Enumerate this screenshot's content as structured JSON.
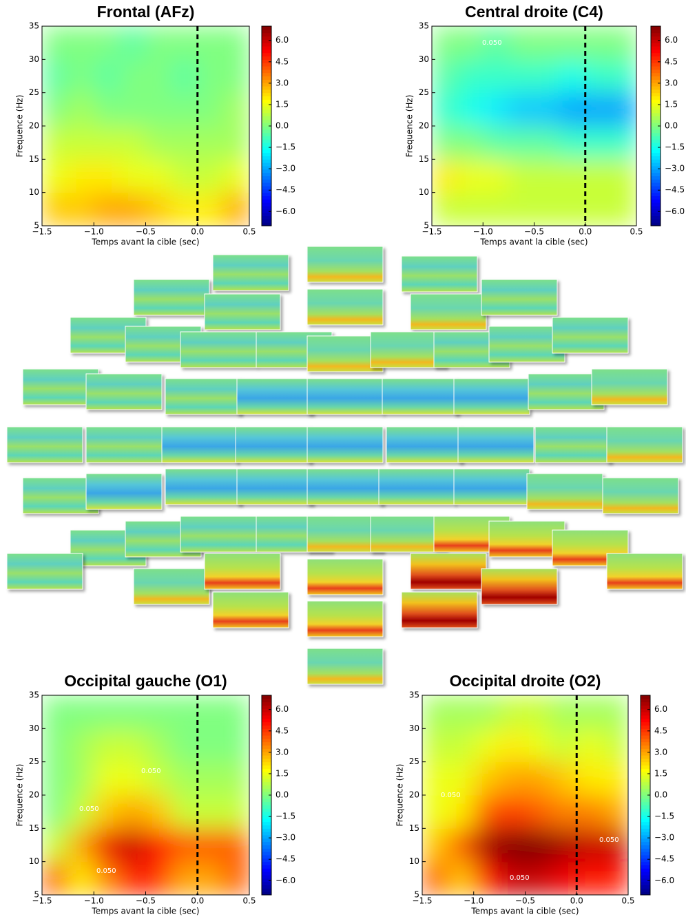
{
  "chart_data": [
    {
      "type": "heatmap",
      "title": "Frontal (AFz)",
      "xlabel": "Temps avant la cible (sec)",
      "ylabel": "Frequence (Hz)",
      "x": [
        -1.5,
        -1.25,
        -1.0,
        -0.75,
        -0.5,
        -0.25,
        0.0,
        0.25,
        0.5
      ],
      "y": [
        5,
        10,
        15,
        20,
        25,
        30,
        35
      ],
      "values": [
        [
          2.5,
          2.5,
          3,
          3,
          2.5,
          2,
          2,
          3
        ],
        [
          1.5,
          2,
          2,
          1.5,
          1.5,
          1,
          1,
          1.5
        ],
        [
          1,
          1,
          1,
          1,
          0.5,
          0.5,
          0.5,
          0.5
        ],
        [
          0,
          0.5,
          0,
          0,
          0,
          0,
          0,
          0.5
        ],
        [
          -0.5,
          0,
          -0.5,
          0,
          0,
          -0.5,
          0,
          0
        ],
        [
          0,
          0,
          0,
          -0.5,
          0,
          0,
          0,
          0
        ]
      ],
      "xlim": [
        -1.5,
        0.5
      ],
      "ylim": [
        5,
        35
      ],
      "xticks": [
        {
          "value": -1.5,
          "label": "−1.5"
        },
        {
          "value": -1.0,
          "label": "−1.0"
        },
        {
          "value": -0.5,
          "label": "−0.5"
        },
        {
          "value": 0,
          "label": "0.0"
        },
        0.5
      ],
      "yticks": [
        5,
        10,
        15,
        20,
        25,
        30,
        35
      ],
      "colormap": "jet",
      "clim": [
        -7,
        7
      ],
      "cticks": [
        {
          "value": 6,
          "label": "6.0"
        },
        4.5,
        {
          "value": 3,
          "label": "3.0"
        },
        1.5,
        {
          "value": 0,
          "label": "0.0"
        },
        {
          "value": -1.5,
          "label": "−1.5"
        },
        {
          "value": -3,
          "label": "−3.0"
        },
        {
          "value": -4.5,
          "label": "−4.5"
        },
        {
          "value": -6,
          "label": "−6.0"
        }
      ],
      "vline": 0
    },
    {
      "type": "heatmap",
      "title": "Central droite (C4)",
      "xlabel": "Temps avant la cible (sec)",
      "ylabel": "Frequence (Hz)",
      "x": [
        -1.5,
        -1.25,
        -1.0,
        -0.75,
        -0.5,
        -0.25,
        0.0,
        0.25,
        0.5
      ],
      "y": [
        5,
        10,
        15,
        20,
        25,
        30,
        35
      ],
      "values": [
        [
          1,
          1,
          1,
          1,
          1,
          1,
          1,
          1
        ],
        [
          2,
          1.5,
          1.5,
          1,
          1,
          1,
          1,
          1
        ],
        [
          0,
          0,
          -0.5,
          -0.5,
          -0.5,
          -1,
          -1,
          -1
        ],
        [
          -1,
          -1.5,
          -2,
          -2.5,
          -2.5,
          -3,
          -3,
          -3
        ],
        [
          -0.5,
          -1,
          -1,
          -1,
          -1,
          -1.5,
          -1,
          -1
        ],
        [
          0,
          0,
          -0.5,
          0,
          0,
          0,
          0,
          0
        ]
      ],
      "xlim": [
        -1.5,
        0.5
      ],
      "ylim": [
        5,
        35
      ],
      "xticks": [
        {
          "value": -1.5,
          "label": "−1.5"
        },
        {
          "value": -1.0,
          "label": "−1.0"
        },
        {
          "value": -0.5,
          "label": "−0.5"
        },
        {
          "value": 0,
          "label": "0.0"
        },
        0.5
      ],
      "yticks": [
        5,
        10,
        15,
        20,
        25,
        30,
        35
      ],
      "colormap": "jet",
      "clim": [
        -7,
        7
      ],
      "cticks": [
        {
          "value": 6,
          "label": "6.0"
        },
        4.5,
        {
          "value": 3,
          "label": "3.0"
        },
        1.5,
        {
          "value": 0,
          "label": "0.0"
        },
        {
          "value": -1.5,
          "label": "−1.5"
        },
        {
          "value": -3,
          "label": "−3.0"
        },
        {
          "value": -4.5,
          "label": "−4.5"
        },
        {
          "value": -6,
          "label": "−6.0"
        }
      ],
      "vline": 0,
      "annotations": [
        "0.050"
      ]
    },
    {
      "type": "heatmap",
      "title": "Occipital gauche (O1)",
      "xlabel": "Temps avant la cible (sec)",
      "ylabel": "Frequence (Hz)",
      "x": [
        -1.5,
        -1.25,
        -1.0,
        -0.75,
        -0.5,
        -0.25,
        0.0,
        0.25,
        0.5
      ],
      "y": [
        5,
        10,
        15,
        20,
        25,
        30,
        35
      ],
      "values": [
        [
          4,
          2,
          3.5,
          5,
          4.5,
          3,
          3,
          4
        ],
        [
          1,
          3,
          5.5,
          6,
          5,
          4,
          4,
          4
        ],
        [
          0,
          1,
          2.5,
          3,
          2.5,
          1,
          1,
          1
        ],
        [
          0,
          0.5,
          1.5,
          1.5,
          1,
          0.5,
          0.5,
          0.5
        ],
        [
          0,
          0.5,
          1,
          1,
          0.5,
          0,
          0,
          0
        ],
        [
          0,
          0,
          0,
          0,
          0,
          0,
          0,
          0
        ]
      ],
      "xlim": [
        -1.5,
        0.5
      ],
      "ylim": [
        5,
        35
      ],
      "xticks": [
        {
          "value": -1.5,
          "label": "−1.5"
        },
        {
          "value": -1.0,
          "label": "−1.0"
        },
        {
          "value": -0.5,
          "label": "−0.5"
        },
        {
          "value": 0,
          "label": "0.0"
        },
        0.5
      ],
      "yticks": [
        5,
        10,
        15,
        20,
        25,
        30,
        35
      ],
      "colormap": "jet",
      "clim": [
        -7,
        7
      ],
      "cticks": [
        {
          "value": 6,
          "label": "6.0"
        },
        4.5,
        {
          "value": 3,
          "label": "3.0"
        },
        1.5,
        {
          "value": 0,
          "label": "0.0"
        },
        {
          "value": -1.5,
          "label": "−1.5"
        },
        {
          "value": -3,
          "label": "−3.0"
        },
        {
          "value": -4.5,
          "label": "−4.5"
        },
        {
          "value": -6,
          "label": "−6.0"
        }
      ],
      "vline": 0,
      "annotations": [
        "0.050"
      ]
    },
    {
      "type": "heatmap",
      "title": "Occipital droite (O2)",
      "xlabel": "Temps avant la cible (sec)",
      "ylabel": "Frequence (Hz)",
      "x": [
        -1.5,
        -1.25,
        -1.0,
        -0.75,
        -0.5,
        -0.25,
        0.0,
        0.25,
        0.5
      ],
      "y": [
        5,
        10,
        15,
        20,
        25,
        30,
        35
      ],
      "values": [
        [
          4,
          2.5,
          5,
          6,
          6,
          5.5,
          5,
          5
        ],
        [
          2.5,
          4,
          6.5,
          7,
          7,
          6.5,
          6,
          6
        ],
        [
          1.5,
          2,
          4,
          4.5,
          4,
          3.5,
          3.5,
          3
        ],
        [
          1.5,
          1.5,
          2.5,
          3,
          3,
          2.5,
          2,
          2
        ],
        [
          1,
          1,
          1.5,
          2,
          1.5,
          1,
          1.5,
          1
        ],
        [
          0.5,
          0.5,
          0.5,
          1,
          1,
          0.5,
          0.5,
          0.5
        ]
      ],
      "xlim": [
        -1.5,
        0.5
      ],
      "ylim": [
        5,
        35
      ],
      "xticks": [
        {
          "value": -1.5,
          "label": "−1.5"
        },
        {
          "value": -1.0,
          "label": "−1.0"
        },
        {
          "value": -0.5,
          "label": "−0.5"
        },
        {
          "value": 0,
          "label": "0.0"
        },
        0.5
      ],
      "yticks": [
        5,
        10,
        15,
        20,
        25,
        30,
        35
      ],
      "colormap": "jet",
      "clim": [
        -7,
        7
      ],
      "cticks": [
        {
          "value": 6,
          "label": "6.0"
        },
        4.5,
        {
          "value": 3,
          "label": "3.0"
        },
        1.5,
        {
          "value": 0,
          "label": "0.0"
        },
        {
          "value": -1.5,
          "label": "−1.5"
        },
        {
          "value": -3,
          "label": "−3.0"
        },
        {
          "value": -4.5,
          "label": "−4.5"
        },
        {
          "value": -6,
          "label": "−6.0"
        }
      ],
      "vline": 0,
      "annotations": [
        "0.050"
      ]
    }
  ]
}
